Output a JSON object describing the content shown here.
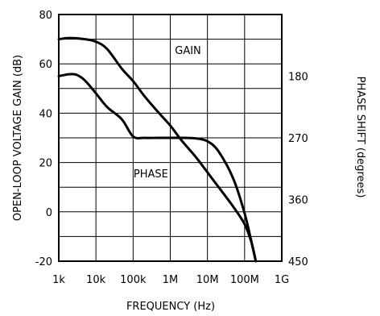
{
  "chart_data": {
    "type": "line",
    "xlabel": "FREQUENCY (Hz)",
    "ylabel": "OPEN-LOOP VOLTAGE GAIN (dB)",
    "y2label": "PHASE SHIFT (degrees)",
    "x_scale": "log",
    "xlim": [
      1000,
      1000000000
    ],
    "ylim": [
      -20,
      80
    ],
    "y2lim": [
      450,
      90
    ],
    "x_ticks": [
      {
        "value": 1000,
        "label": "1k"
      },
      {
        "value": 10000,
        "label": "10k"
      },
      {
        "value": 100000,
        "label": "100k"
      },
      {
        "value": 1000000,
        "label": "1M"
      },
      {
        "value": 10000000,
        "label": "10M"
      },
      {
        "value": 100000000,
        "label": "100M"
      },
      {
        "value": 1000000000,
        "label": "1G"
      }
    ],
    "y_ticks": [
      {
        "value": 80,
        "label": "80"
      },
      {
        "value": 60,
        "label": "60"
      },
      {
        "value": 40,
        "label": "40"
      },
      {
        "value": 20,
        "label": "20"
      },
      {
        "value": 0,
        "label": "0"
      },
      {
        "value": -20,
        "label": "-20"
      }
    ],
    "y2_ticks": [
      {
        "value": 180,
        "label": "180"
      },
      {
        "value": 270,
        "label": "270"
      },
      {
        "value": 360,
        "label": "360"
      },
      {
        "value": 450,
        "label": "450"
      }
    ],
    "grid": true,
    "series": [
      {
        "name": "GAIN",
        "axis": "left",
        "x": [
          1000,
          2000,
          5000,
          10000,
          20000,
          50000,
          100000,
          200000,
          500000,
          1000000,
          2000000,
          5000000,
          10000000,
          20000000,
          50000000,
          100000000,
          150000000,
          200000000
        ],
        "y": [
          70,
          70.5,
          70,
          69,
          66,
          58,
          53,
          47,
          40,
          35,
          29,
          22,
          16,
          10,
          2,
          -5,
          -12,
          -20
        ]
      },
      {
        "name": "PHASE",
        "axis": "right",
        "x": [
          1000,
          1500,
          2000,
          3000,
          5000,
          10000,
          20000,
          50000,
          100000,
          200000,
          500000,
          1000000,
          2000000,
          5000000,
          10000000,
          20000000,
          50000000,
          100000000,
          150000000,
          200000000
        ],
        "y": [
          180,
          178,
          177,
          178,
          186,
          205,
          225,
          243,
          268,
          270,
          270,
          270,
          270,
          271,
          275,
          290,
          330,
          380,
          420,
          450
        ]
      }
    ],
    "annotations": [
      {
        "text": "GAIN",
        "x": 3000000,
        "y": 64
      },
      {
        "text": "PHASE",
        "x": 300000,
        "y": 14
      }
    ]
  }
}
